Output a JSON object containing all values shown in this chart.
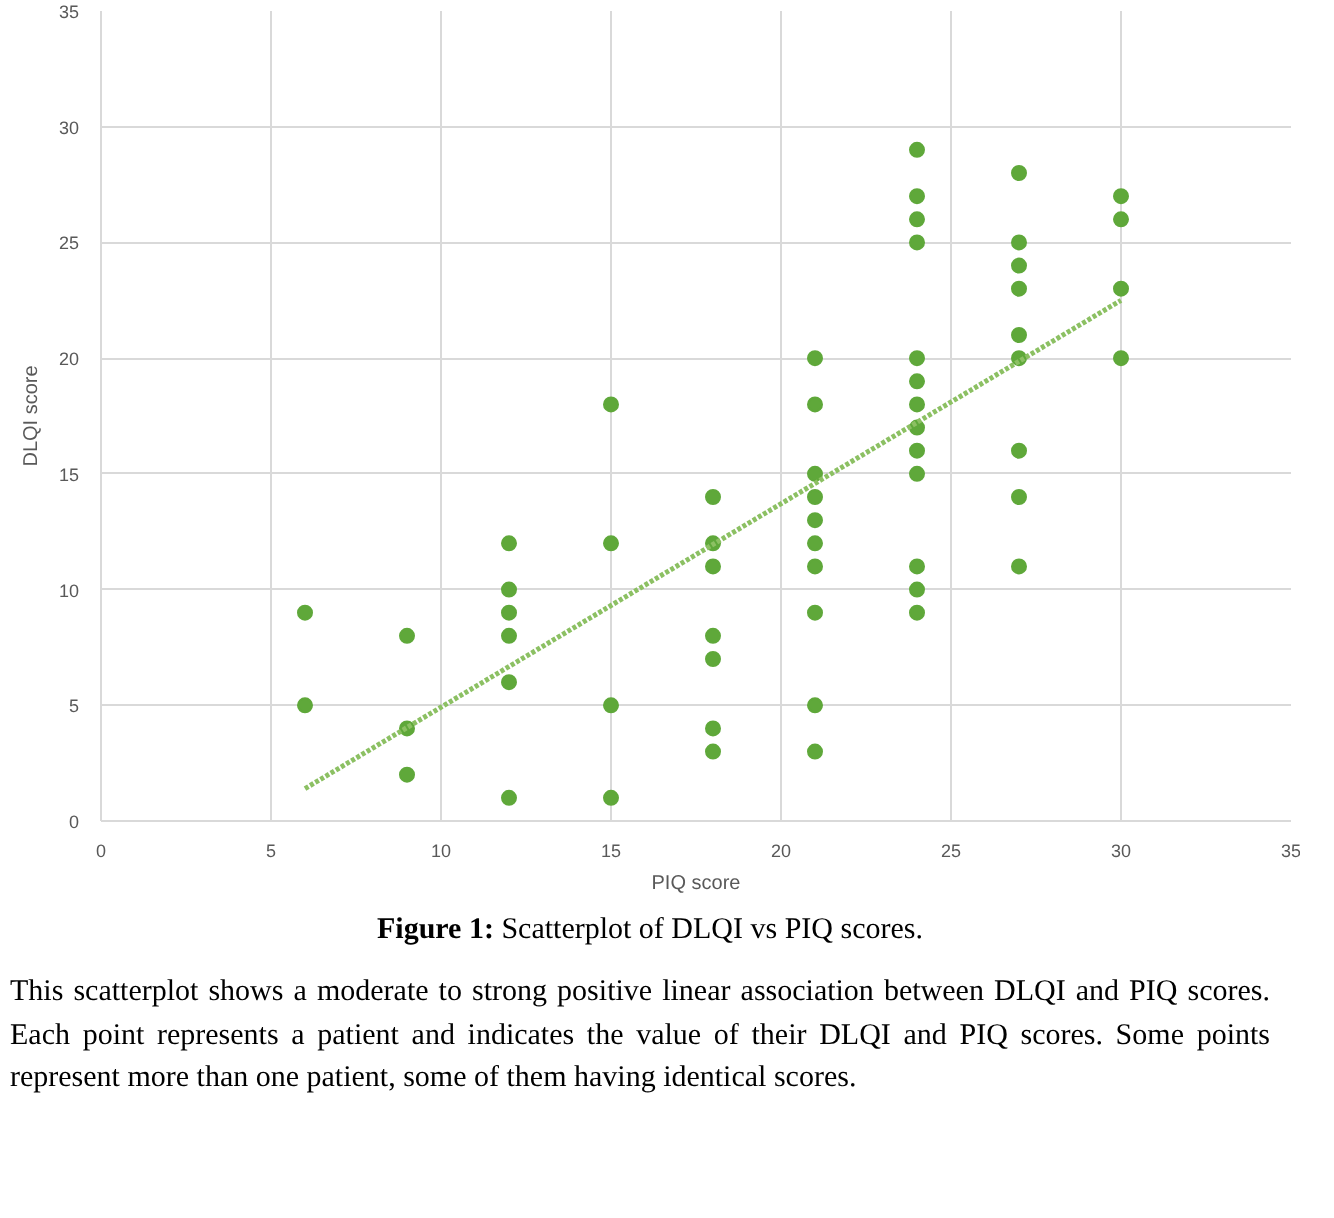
{
  "chart_data": {
    "type": "scatter",
    "xlabel": "PIQ score",
    "ylabel": "DLQI score",
    "xlim": [
      0,
      35
    ],
    "ylim": [
      0,
      35
    ],
    "xticks": [
      0,
      5,
      10,
      15,
      20,
      25,
      30,
      35
    ],
    "yticks": [
      0,
      5,
      10,
      15,
      20,
      25,
      30,
      35
    ],
    "grid": true,
    "series": [
      {
        "marker": "circle",
        "color": "#5fa83a",
        "x": [
          6,
          6,
          9,
          9,
          9,
          12,
          12,
          12,
          12,
          12,
          12,
          15,
          15,
          15,
          15,
          18,
          18,
          18,
          18,
          18,
          18,
          18,
          21,
          21,
          21,
          21,
          21,
          21,
          21,
          21,
          21,
          21,
          24,
          24,
          24,
          24,
          24,
          24,
          24,
          24,
          24,
          24,
          24,
          24,
          24,
          27,
          27,
          27,
          27,
          27,
          27,
          27,
          27,
          27,
          30,
          30,
          30,
          30
        ],
        "values": [
          9,
          5,
          8,
          4,
          2,
          12,
          10,
          9,
          8,
          6,
          1,
          18,
          12,
          5,
          1,
          14,
          12,
          11,
          8,
          7,
          4,
          3,
          20,
          18,
          15,
          14,
          13,
          12,
          11,
          9,
          5,
          3,
          29,
          27,
          26,
          25,
          20,
          19,
          18,
          17,
          16,
          15,
          11,
          10,
          9,
          28,
          25,
          24,
          23,
          21,
          20,
          16,
          14,
          11,
          27,
          26,
          23,
          20
        ]
      },
      {
        "type": "line",
        "line_style": "dotted",
        "color": "#8cc063",
        "x": [
          6,
          30
        ],
        "values": [
          1.4,
          22.5
        ]
      }
    ],
    "annotations": [
      "Figure 1: Scatterplot of DLQI vs PIQ scores.",
      "This scatterplot shows a moderate to strong positive linear association between DLQI and PIQ scores. Each point represents a patient and indicates the value of their DLQI and PIQ scores. Some points represent more than one patient, some of them having identical scores."
    ]
  }
}
